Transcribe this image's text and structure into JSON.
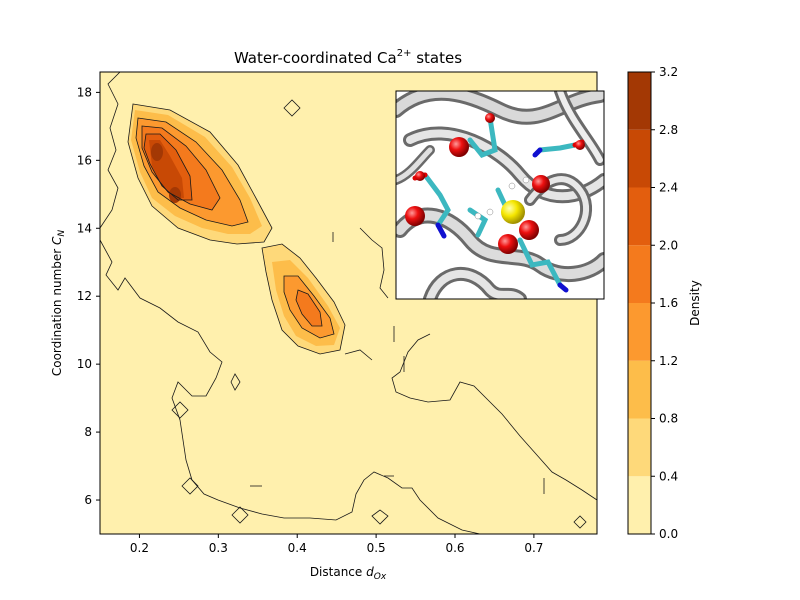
{
  "chart_data": {
    "type": "heatmap",
    "subtype": "filled-contour",
    "title": "Water-coordinated Ca",
    "title_superscript": "2+",
    "title_suffix": " states",
    "xlabel": "Distance",
    "xlabel_symbol": "d",
    "xlabel_subscript": "Ox",
    "ylabel": "Coordination number",
    "ylabel_symbol": "C",
    "ylabel_subscript": "N",
    "xlim": [
      0.15,
      0.78
    ],
    "ylim": [
      5.0,
      18.6
    ],
    "xticks": [
      0.2,
      0.3,
      0.4,
      0.5,
      0.6,
      0.7
    ],
    "xtick_labels": [
      "0.2",
      "0.3",
      "0.4",
      "0.5",
      "0.6",
      "0.7"
    ],
    "yticks": [
      6,
      8,
      10,
      12,
      14,
      16,
      18
    ],
    "ytick_labels": [
      "6",
      "8",
      "10",
      "12",
      "14",
      "16",
      "18"
    ],
    "grid": false,
    "colorbar": {
      "label": "Density",
      "levels": [
        0.0,
        0.4,
        0.8,
        1.2,
        1.6,
        2.0,
        2.4,
        2.8,
        3.2
      ],
      "tick_labels": [
        "0.0",
        "0.4",
        "0.8",
        "1.2",
        "1.6",
        "2.0",
        "2.4",
        "2.8",
        "3.2"
      ],
      "colors": [
        "#fff0ad",
        "#fed97a",
        "#fdbd4a",
        "#fc992f",
        "#f47a1d",
        "#e35e0e",
        "#c84905",
        "#a33804",
        "#7b2a05"
      ]
    },
    "density_peaks": [
      {
        "x": 0.25,
        "y": 14.9,
        "value": 3.0
      },
      {
        "x": 0.225,
        "y": 16.2,
        "value": 2.9
      },
      {
        "x": 0.42,
        "y": 11.4,
        "value": 1.7
      }
    ],
    "inset": {
      "description": "protein ribbon structure with Ca2+ ion",
      "ion_color": "#f5e600",
      "oxygen_color": "#e00000",
      "nitrogen_color": "#1010d0",
      "carbon_color": "#3cb8c0"
    }
  }
}
